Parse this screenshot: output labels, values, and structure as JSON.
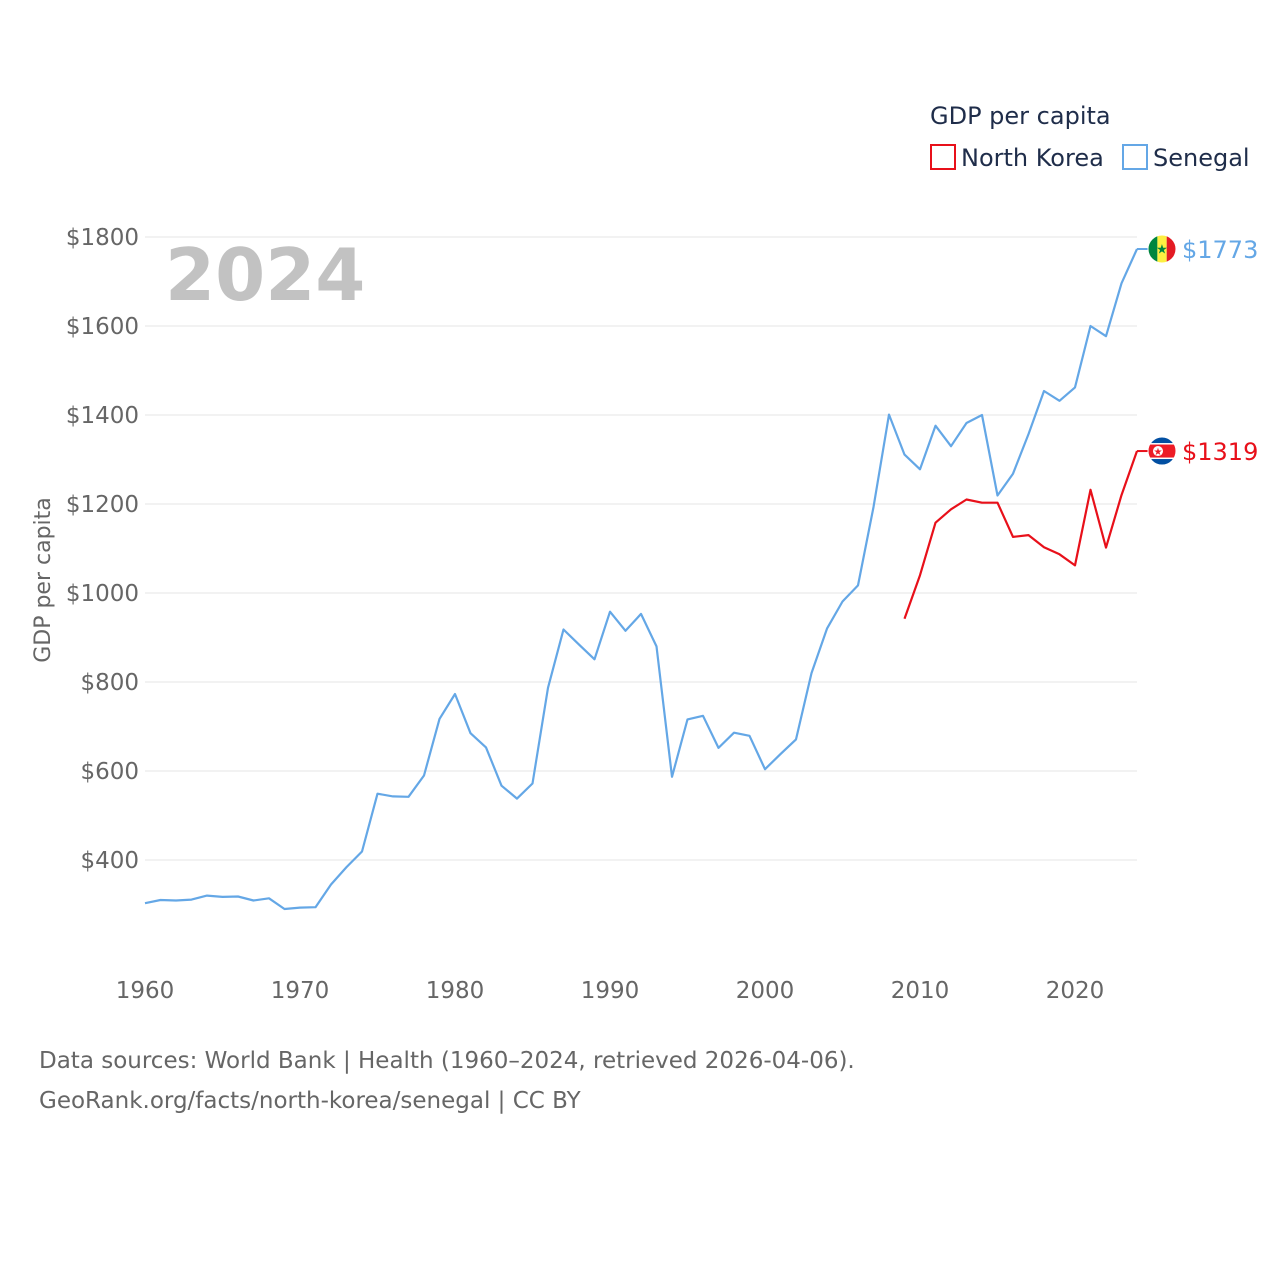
{
  "chart_data": {
    "type": "line",
    "legend_title": "GDP per capita",
    "ylabel": "GDP per capita",
    "year_label": "2024",
    "xlim": [
      1960,
      2024
    ],
    "ylim": [
      200,
      1850
    ],
    "x_ticks": [
      1960,
      1970,
      1980,
      1990,
      2000,
      2010,
      2020
    ],
    "x_tick_labels": [
      "1960",
      "1970",
      "1980",
      "1990",
      "2000",
      "2010",
      "2020"
    ],
    "y_ticks": [
      400,
      600,
      800,
      1000,
      1200,
      1400,
      1600,
      1800
    ],
    "y_tick_labels": [
      "$400",
      "$600",
      "$800",
      "$1000",
      "$1200",
      "$1400",
      "$1600",
      "$1800"
    ],
    "series": [
      {
        "name": "North Korea",
        "color": "#e8101a",
        "end_label": "$1319",
        "flag_icon": "north-korea-flag-icon",
        "x": [
          2009,
          2010,
          2011,
          2012,
          2013,
          2014,
          2015,
          2016,
          2017,
          2018,
          2019,
          2020,
          2021,
          2022,
          2023,
          2024
        ],
        "values": [
          942,
          1040,
          1158,
          1188,
          1210,
          1203,
          1203,
          1126,
          1130,
          1103,
          1087,
          1062,
          1232,
          1102,
          1220,
          1319
        ]
      },
      {
        "name": "Senegal",
        "color": "#64a7e6",
        "end_label": "$1773",
        "flag_icon": "senegal-flag-icon",
        "x": [
          1960,
          1961,
          1962,
          1963,
          1964,
          1965,
          1966,
          1967,
          1968,
          1969,
          1970,
          1971,
          1972,
          1973,
          1974,
          1975,
          1976,
          1977,
          1978,
          1979,
          1980,
          1981,
          1982,
          1983,
          1984,
          1985,
          1986,
          1987,
          1988,
          1989,
          1990,
          1991,
          1992,
          1993,
          1994,
          1995,
          1996,
          1997,
          1998,
          1999,
          2000,
          2001,
          2002,
          2003,
          2004,
          2005,
          2006,
          2007,
          2008,
          2009,
          2010,
          2011,
          2012,
          2013,
          2014,
          2015,
          2016,
          2017,
          2018,
          2019,
          2020,
          2021,
          2022,
          2023,
          2024
        ],
        "values": [
          303,
          310,
          309,
          311,
          320,
          317,
          318,
          309,
          314,
          290,
          293,
          294,
          345,
          384,
          419,
          549,
          543,
          542,
          590,
          717,
          773,
          685,
          653,
          567,
          538,
          572,
          787,
          918,
          884,
          851,
          958,
          915,
          953,
          880,
          587,
          716,
          724,
          652,
          686,
          679,
          604,
          638,
          671,
          820,
          920,
          981,
          1017,
          1193,
          1401,
          1311,
          1278,
          1376,
          1330,
          1382,
          1400,
          1219,
          1268,
          1357,
          1454,
          1432,
          1462,
          1600,
          1577,
          1696,
          1773
        ]
      }
    ]
  },
  "footer": {
    "sources": "Data sources: World Bank | Health (1960–2024, retrieved 2026-04-06).",
    "attribution": "GeoRank.org/facts/north-korea/senegal | CC BY"
  }
}
